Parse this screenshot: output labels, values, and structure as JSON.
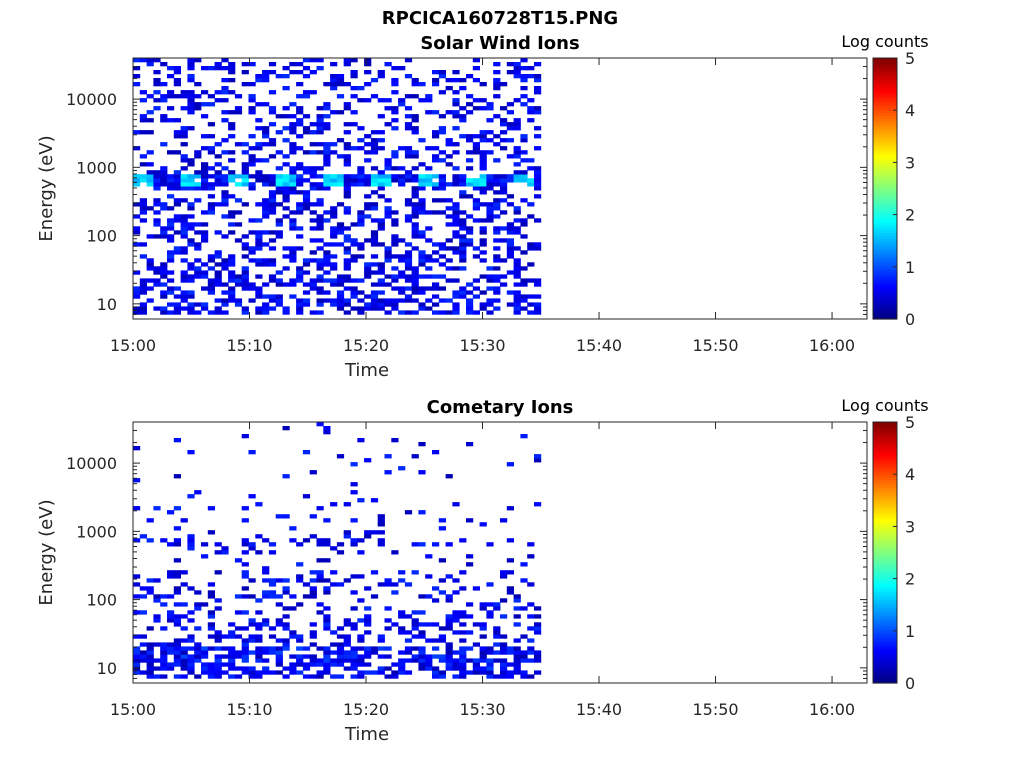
{
  "figure": {
    "title": "RPCICA160728T15.PNG"
  },
  "chart_data": [
    {
      "type": "heatmap",
      "title": "Solar Wind Ions",
      "xlabel": "Time",
      "ylabel": "Energy (eV)",
      "x_tick_labels": [
        "15:00",
        "15:10",
        "15:20",
        "15:30",
        "15:40",
        "15:50",
        "16:00"
      ],
      "xlim": [
        "15:00",
        "16:03"
      ],
      "data_time_range": [
        "15:00",
        "15:35"
      ],
      "y_scale": "log",
      "ylim": [
        6,
        40000
      ],
      "y_tick_labels": [
        "10",
        "100",
        "1000",
        "10000"
      ],
      "colorbar": {
        "label": "Log counts",
        "range": [
          0,
          5
        ],
        "tick_labels": [
          "0",
          "1",
          "2",
          "3",
          "4",
          "5"
        ],
        "colormap": "jet"
      },
      "grid": false,
      "features": [
        {
          "time_range": [
            "15:00",
            "15:35"
          ],
          "energy_range": [
            500,
            700
          ],
          "log_counts": 1.8,
          "note": "periodic brighter band"
        }
      ]
    },
    {
      "type": "heatmap",
      "title": "Cometary Ions",
      "xlabel": "Time",
      "ylabel": "Energy (eV)",
      "x_tick_labels": [
        "15:00",
        "15:10",
        "15:20",
        "15:30",
        "15:40",
        "15:50",
        "16:00"
      ],
      "xlim": [
        "15:00",
        "16:03"
      ],
      "data_time_range": [
        "15:00",
        "15:35"
      ],
      "y_scale": "log",
      "ylim": [
        6,
        40000
      ],
      "y_tick_labels": [
        "10",
        "100",
        "1000",
        "10000"
      ],
      "colorbar": {
        "label": "Log counts",
        "range": [
          0,
          5
        ],
        "tick_labels": [
          "0",
          "1",
          "2",
          "3",
          "4",
          "5"
        ],
        "colormap": "jet"
      },
      "grid": false,
      "features": [
        {
          "time_range": [
            "15:00",
            "15:35"
          ],
          "energy_range": [
            8,
            20
          ],
          "log_counts": 0.8
        },
        {
          "time_range": [
            "15:00",
            "15:35"
          ],
          "energy_range": [
            550,
            700
          ],
          "log_counts": 0.5
        }
      ]
    }
  ]
}
